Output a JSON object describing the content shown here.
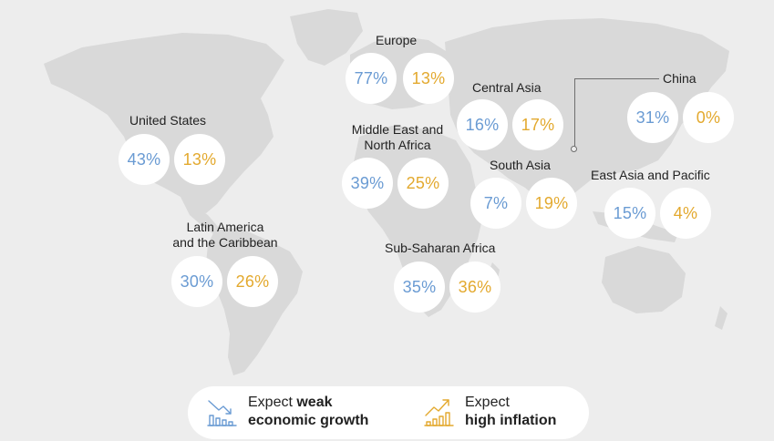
{
  "colors": {
    "growth": "#6a9bd3",
    "inflation": "#e3a92e",
    "land": "#d9d9d9",
    "background": "#ededed"
  },
  "regions": {
    "europe": {
      "name": "Europe",
      "growth": "77%",
      "inflation": "13%"
    },
    "central_asia": {
      "name": "Central Asia",
      "growth": "16%",
      "inflation": "17%"
    },
    "china": {
      "name": "China",
      "growth": "31%",
      "inflation": "0%"
    },
    "united_states": {
      "name": "United States",
      "growth": "43%",
      "inflation": "13%"
    },
    "mena": {
      "name_line1": "Middle East and",
      "name_line2": "North Africa",
      "growth": "39%",
      "inflation": "25%"
    },
    "south_asia": {
      "name": "South Asia",
      "growth": "7%",
      "inflation": "19%"
    },
    "east_asia_pacific": {
      "name": "East Asia and Pacific",
      "growth": "15%",
      "inflation": "4%"
    },
    "latin_america": {
      "name_line1": "Latin America",
      "name_line2": "and the Caribbean",
      "growth": "30%",
      "inflation": "26%"
    },
    "sub_saharan_africa": {
      "name": "Sub-Saharan Africa",
      "growth": "35%",
      "inflation": "36%"
    }
  },
  "legend": {
    "growth": {
      "icon": "declining-bar-chart-icon",
      "line1_prefix": "Expect ",
      "line1_bold": "weak",
      "line2_bold": "economic growth"
    },
    "inflation": {
      "icon": "rising-bar-chart-icon",
      "line1_prefix": "Expect",
      "line1_bold": "",
      "line2_bold": "high inflation"
    }
  }
}
